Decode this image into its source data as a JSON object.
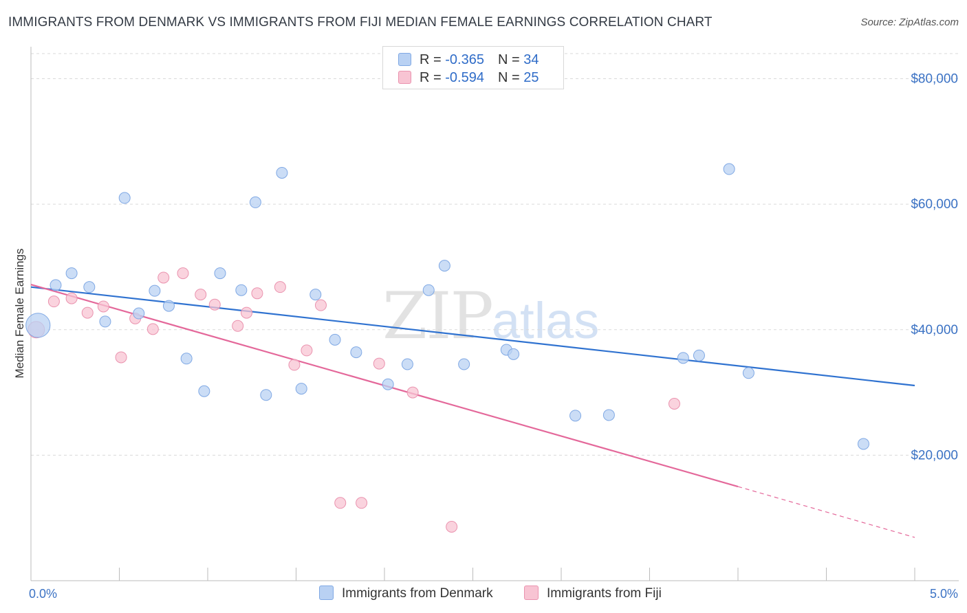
{
  "title": "IMMIGRANTS FROM DENMARK VS IMMIGRANTS FROM FIJI MEDIAN FEMALE EARNINGS CORRELATION CHART",
  "source": "Source: ZipAtlas.com",
  "watermark": {
    "zip": "ZIP",
    "atlas": "atlas"
  },
  "legend": {
    "rows": [
      {
        "r_label": "R = ",
        "r_value": "-0.365",
        "n_label": "N = ",
        "n_value": "34"
      },
      {
        "r_label": "R = ",
        "r_value": "-0.594",
        "n_label": "N = ",
        "n_value": "25"
      }
    ]
  },
  "bottom_legend": {
    "series1": "Immigrants from Denmark",
    "series2": "Immigrants from Fiji"
  },
  "colors": {
    "denmark_fill": "#b9d1f3",
    "denmark_stroke": "#7fa8e4",
    "denmark_line": "#2f72d0",
    "fiji_fill": "#f8c4d3",
    "fiji_stroke": "#ea92ae",
    "fiji_line": "#e4689a",
    "tick_label": "#3b72c4",
    "grid": "#d9d9d9"
  },
  "chart_data": {
    "type": "scatter",
    "title": "IMMIGRANTS FROM DENMARK VS IMMIGRANTS FROM FIJI MEDIAN FEMALE EARNINGS CORRELATION CHART",
    "xlabel": "",
    "ylabel": "Median Female Earnings",
    "xlim": [
      0,
      5
    ],
    "ylim": [
      0,
      84000
    ],
    "x_tick_labels": [
      "0.0%",
      "5.0%"
    ],
    "y_ticks": [
      20000,
      40000,
      60000,
      80000
    ],
    "y_tick_labels": [
      "$20,000",
      "$40,000",
      "$60,000",
      "$80,000"
    ],
    "grid": true,
    "legend_position": "top-center",
    "series": [
      {
        "name": "Immigrants from Denmark",
        "points": [
          [
            0.04,
            40700,
            2.2
          ],
          [
            0.14,
            47100,
            1
          ],
          [
            0.23,
            49000,
            1
          ],
          [
            0.33,
            46800,
            1
          ],
          [
            0.42,
            41300,
            1
          ],
          [
            0.53,
            61000,
            1
          ],
          [
            0.61,
            42600,
            1
          ],
          [
            0.7,
            46200,
            1
          ],
          [
            0.78,
            43800,
            1
          ],
          [
            0.88,
            35400,
            1
          ],
          [
            0.98,
            30200,
            1
          ],
          [
            1.07,
            49000,
            1
          ],
          [
            1.19,
            46300,
            1
          ],
          [
            1.27,
            60300,
            1
          ],
          [
            1.33,
            29600,
            1
          ],
          [
            1.42,
            65000,
            1
          ],
          [
            1.53,
            30600,
            1
          ],
          [
            1.61,
            45600,
            1
          ],
          [
            1.72,
            38400,
            1
          ],
          [
            1.84,
            36400,
            1
          ],
          [
            2.02,
            31300,
            1
          ],
          [
            2.13,
            34500,
            1
          ],
          [
            2.25,
            46300,
            1
          ],
          [
            2.34,
            50200,
            1
          ],
          [
            2.45,
            34500,
            1
          ],
          [
            2.69,
            36800,
            1
          ],
          [
            2.73,
            36100,
            1
          ],
          [
            3.08,
            26300,
            1
          ],
          [
            3.27,
            26400,
            1
          ],
          [
            3.69,
            35500,
            1
          ],
          [
            3.78,
            35900,
            1
          ],
          [
            3.95,
            65600,
            1
          ],
          [
            4.06,
            33100,
            1
          ],
          [
            4.71,
            21800,
            1
          ]
        ],
        "trend": {
          "x0": 0.0,
          "y0": 46800,
          "x1": 5.0,
          "y1": 31100
        }
      },
      {
        "name": "Immigrants from Fiji",
        "points": [
          [
            0.03,
            40000,
            1.5
          ],
          [
            0.13,
            44500,
            1
          ],
          [
            0.23,
            45000,
            1
          ],
          [
            0.32,
            42700,
            1
          ],
          [
            0.41,
            43700,
            1
          ],
          [
            0.51,
            35600,
            1
          ],
          [
            0.59,
            41800,
            1
          ],
          [
            0.69,
            40100,
            1
          ],
          [
            0.75,
            48300,
            1
          ],
          [
            0.86,
            49000,
            1
          ],
          [
            0.96,
            45600,
            1
          ],
          [
            1.04,
            44000,
            1
          ],
          [
            1.17,
            40600,
            1
          ],
          [
            1.22,
            42700,
            1
          ],
          [
            1.28,
            45800,
            1
          ],
          [
            1.41,
            46800,
            1
          ],
          [
            1.49,
            34400,
            1
          ],
          [
            1.56,
            36700,
            1
          ],
          [
            1.64,
            43900,
            1
          ],
          [
            1.75,
            12400,
            1
          ],
          [
            1.87,
            12400,
            1
          ],
          [
            1.97,
            34600,
            1
          ],
          [
            2.16,
            30000,
            1
          ],
          [
            2.38,
            8600,
            1
          ],
          [
            3.64,
            28200,
            1
          ]
        ],
        "trend": {
          "x0": 0.0,
          "y0": 47200,
          "x1": 4.0,
          "y1": 15000,
          "dashed_to": {
            "x": 5.0,
            "y": 6900
          }
        }
      }
    ]
  }
}
